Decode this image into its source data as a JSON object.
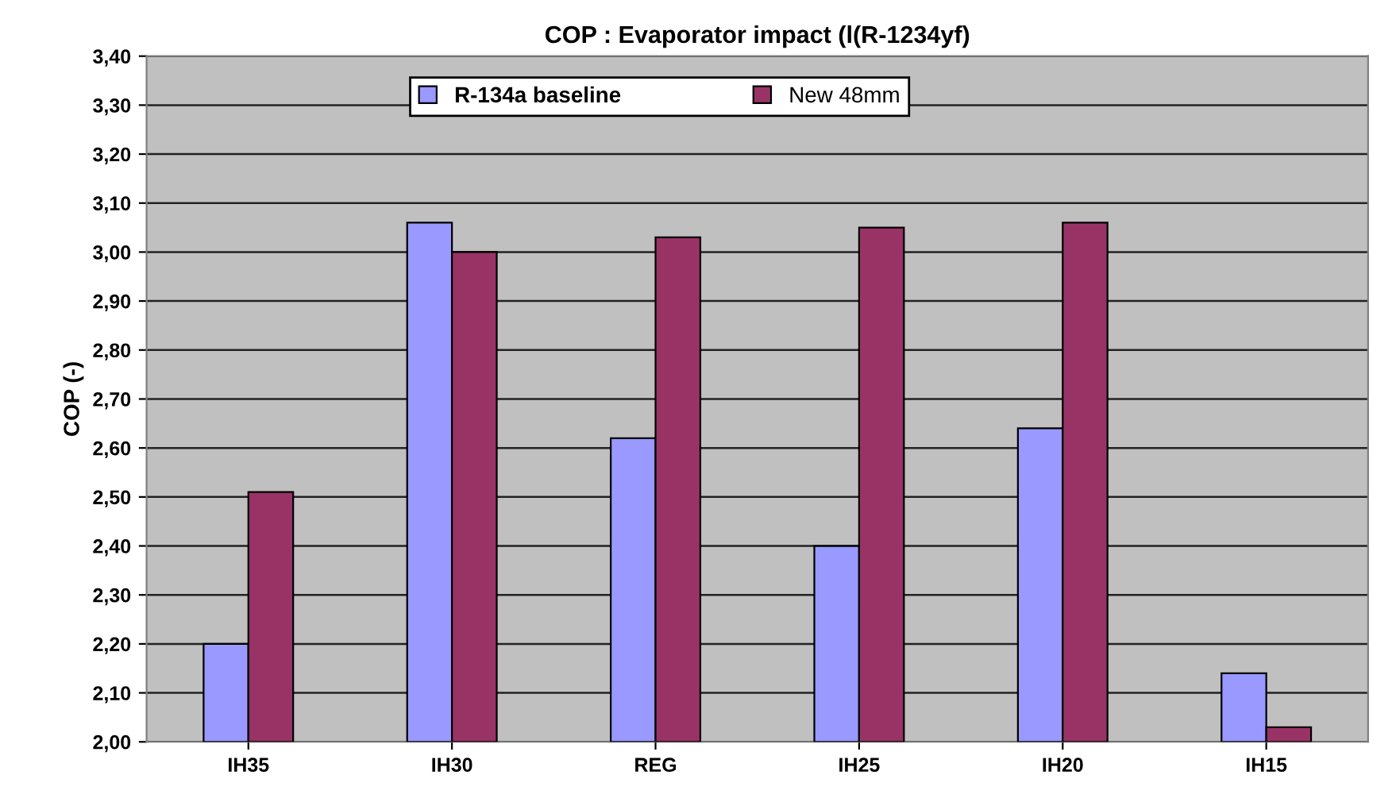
{
  "chart_data": {
    "type": "bar",
    "title": "COP : Evaporator impact (l(R-1234yf)",
    "ylabel": "COP (-)",
    "categories": [
      "IH35",
      "IH30",
      "REG",
      "IH25",
      "IH20",
      "IH15"
    ],
    "series": [
      {
        "name": "R-134a baseline",
        "color": "#9999ff",
        "values": [
          2.2,
          3.06,
          2.62,
          2.4,
          2.64,
          2.14
        ]
      },
      {
        "name": "New 48mm",
        "color": "#993366",
        "values": [
          2.51,
          3.0,
          3.03,
          3.05,
          3.06,
          2.03
        ]
      }
    ],
    "ylim": [
      2.0,
      3.4
    ],
    "yticks": [
      {
        "value": 2.0,
        "label": "2,00"
      },
      {
        "value": 2.1,
        "label": "2,10"
      },
      {
        "value": 2.2,
        "label": "2,20"
      },
      {
        "value": 2.3,
        "label": "2,30"
      },
      {
        "value": 2.4,
        "label": "2,40"
      },
      {
        "value": 2.5,
        "label": "2,50"
      },
      {
        "value": 2.6,
        "label": "2,60"
      },
      {
        "value": 2.7,
        "label": "2,70"
      },
      {
        "value": 2.8,
        "label": "2,80"
      },
      {
        "value": 2.9,
        "label": "2,90"
      },
      {
        "value": 3.0,
        "label": "3,00"
      },
      {
        "value": 3.1,
        "label": "3,10"
      },
      {
        "value": 3.2,
        "label": "3,20"
      },
      {
        "value": 3.3,
        "label": "3,30"
      },
      {
        "value": 3.4,
        "label": "3,40"
      }
    ],
    "grid": "y",
    "legend": "top"
  }
}
